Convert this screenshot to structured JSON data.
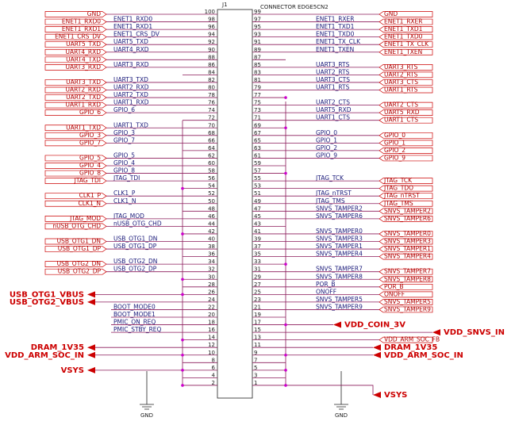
{
  "ref": "J1",
  "part": "CONNECTOR EDGE5CN2",
  "ground_labels": [
    "GND",
    "GND"
  ],
  "left_pins": [
    {
      "pin": "100",
      "port": "GND"
    },
    {
      "pin": "98",
      "net": "ENET1_RXD0",
      "port": "ENET1_RXD0"
    },
    {
      "pin": "96",
      "net": "ENET1_RXD1",
      "port": "ENET1_RXD1"
    },
    {
      "pin": "94",
      "net": "ENET1_CRS_DV",
      "port": "ENET1_CRS_DV"
    },
    {
      "pin": "92",
      "net": "UART5_TXD",
      "port": "UART5_TXD"
    },
    {
      "pin": "90",
      "net": "UART4_RXD",
      "port": "UART4_RXD"
    },
    {
      "pin": "88",
      "port": "UART4_TXD"
    },
    {
      "pin": "86",
      "net": "UART3_RXD",
      "port": "UART3_RXD"
    },
    {
      "pin": "84"
    },
    {
      "pin": "82",
      "net": "UART3_TXD",
      "port": "UART3_TXD"
    },
    {
      "pin": "80",
      "net": "UART2_RXD",
      "port": "UART2_RXD"
    },
    {
      "pin": "78",
      "net": "UART2_TXD",
      "port": "UART2_TXD"
    },
    {
      "pin": "76",
      "net": "UART1_RXD",
      "port": "UART1_RXD"
    },
    {
      "pin": "74",
      "net": "GPIO_6",
      "port": "GPIO_6"
    },
    {
      "pin": "72"
    },
    {
      "pin": "70",
      "net": "UART1_TXD",
      "port": "UART1_TXD"
    },
    {
      "pin": "68",
      "net": "GPIO_3",
      "port": "GPIO_3"
    },
    {
      "pin": "66",
      "net": "GPIO_7",
      "port": "GPIO_7"
    },
    {
      "pin": "64"
    },
    {
      "pin": "62",
      "net": "GPIO_5",
      "port": "GPIO_5"
    },
    {
      "pin": "60",
      "net": "GPIO_4",
      "port": "GPIO_4"
    },
    {
      "pin": "58",
      "net": "GPIO_8",
      "port": "GPIO_8"
    },
    {
      "pin": "56",
      "net": "JTAG_TDI",
      "port": "JTAG_TDI"
    },
    {
      "pin": "54"
    },
    {
      "pin": "52",
      "net": "CLK1_P",
      "port": "CLK1_P"
    },
    {
      "pin": "50",
      "net": "CLK1_N",
      "port": "CLK1_N"
    },
    {
      "pin": "48"
    },
    {
      "pin": "46",
      "net": "JTAG_MOD",
      "port": "JTAG_MOD"
    },
    {
      "pin": "44",
      "net": "nUSB_OTG_CHD",
      "port": "nUSB_OTG_CHD"
    },
    {
      "pin": "42"
    },
    {
      "pin": "40",
      "net": "USB_OTG1_DN",
      "port": "USB_OTG1_DN"
    },
    {
      "pin": "38",
      "net": "USB_OTG1_DP",
      "port": "USB_OTG1_DP"
    },
    {
      "pin": "36"
    },
    {
      "pin": "34",
      "net": "USB_OTG2_DN",
      "port": "USB_OTG2_DN"
    },
    {
      "pin": "32",
      "net": "USB_OTG2_DP",
      "port": "USB_OTG2_DP"
    },
    {
      "pin": "30"
    },
    {
      "pin": "28"
    },
    {
      "pin": "26",
      "power": "USB_OTG1_VBUS"
    },
    {
      "pin": "24",
      "power": "USB_OTG2_VBUS"
    },
    {
      "pin": "22",
      "net": "BOOT_MODE0"
    },
    {
      "pin": "20",
      "net": "BOOT_MODE1"
    },
    {
      "pin": "18",
      "net": "PMIC_ON_REQ"
    },
    {
      "pin": "16",
      "net": "PMIC_STBY_REQ"
    },
    {
      "pin": "14"
    },
    {
      "pin": "12",
      "power": "DRAM_1V35"
    },
    {
      "pin": "10",
      "power": "VDD_ARM_SOC_IN"
    },
    {
      "pin": "8"
    },
    {
      "pin": "6",
      "power": "VSYS"
    },
    {
      "pin": "4"
    },
    {
      "pin": "2"
    }
  ],
  "right_pins": [
    {
      "pin": "99",
      "port": "GND"
    },
    {
      "pin": "97",
      "net": "ENET1_RXER",
      "port": "ENET1_RXER"
    },
    {
      "pin": "95",
      "net": "ENET1_TXD1",
      "port": "ENET1_TXD1"
    },
    {
      "pin": "93",
      "net": "ENET1_TXD0",
      "port": "ENET1_TXD0"
    },
    {
      "pin": "91",
      "net": "ENET1_TX_CLK",
      "port": "ENET1_TX_CLK"
    },
    {
      "pin": "89",
      "net": "ENET1_TXEN",
      "port": "ENET1_TXEN"
    },
    {
      "pin": "87"
    },
    {
      "pin": "85",
      "net": "UART3_RTS",
      "port": "UART3_RTS"
    },
    {
      "pin": "83",
      "net": "UART2_RTS",
      "port": "UART2_RTS"
    },
    {
      "pin": "81",
      "net": "UART3_CTS",
      "port": "UART3_CTS"
    },
    {
      "pin": "79",
      "net": "UART1_RTS",
      "port": "UART1_RTS"
    },
    {
      "pin": "77"
    },
    {
      "pin": "75",
      "net": "UART2_CTS",
      "port": "UART2_CTS"
    },
    {
      "pin": "73",
      "net": "UART5_RXD",
      "port": "UART5_RXD"
    },
    {
      "pin": "71",
      "net": "UART1_CTS",
      "port": "UART1_CTS"
    },
    {
      "pin": "69"
    },
    {
      "pin": "67",
      "net": "GPIO_0",
      "port": "GPIO_0"
    },
    {
      "pin": "65",
      "net": "GPIO_1",
      "port": "GPIO_1"
    },
    {
      "pin": "63",
      "net": "GPIO_2",
      "port": "GPIO_2"
    },
    {
      "pin": "61",
      "net": "GPIO_9",
      "port": "GPIO_9"
    },
    {
      "pin": "59"
    },
    {
      "pin": "57"
    },
    {
      "pin": "55",
      "net": "JTAG_TCK",
      "port": "JTAG_TCK"
    },
    {
      "pin": "53",
      "port": "JTAG_TDO"
    },
    {
      "pin": "51",
      "net": "JTAG_nTRST",
      "port": "JTAG_nTRST"
    },
    {
      "pin": "49",
      "net": "JTAG_TMS",
      "port": "JTAG_TMS"
    },
    {
      "pin": "47",
      "net": "SNVS_TAMPER2",
      "port": "SNVS_TAMPER2"
    },
    {
      "pin": "45",
      "net": "SNVS_TAMPER6",
      "port": "SNVS_TAMPER6"
    },
    {
      "pin": "43"
    },
    {
      "pin": "41",
      "net": "SNVS_TAMPER0",
      "port": "SNVS_TAMPER0"
    },
    {
      "pin": "39",
      "net": "SNVS_TAMPER3",
      "port": "SNVS_TAMPER3"
    },
    {
      "pin": "37",
      "net": "SNVS_TAMPER1",
      "port": "SNVS_TAMPER1"
    },
    {
      "pin": "35",
      "net": "SNVS_TAMPER4",
      "port": "SNVS_TAMPER4"
    },
    {
      "pin": "33"
    },
    {
      "pin": "31",
      "net": "SNVS_TAMPER7",
      "port": "SNVS_TAMPER7"
    },
    {
      "pin": "29",
      "net": "SNVS_TAMPER8",
      "port": "SNVS_TAMPER8"
    },
    {
      "pin": "27",
      "net": "POR_B",
      "port": "POR_B"
    },
    {
      "pin": "25",
      "net": "ONOFF",
      "port": "ONOFF"
    },
    {
      "pin": "23",
      "net": "SNVS_TAMPER5",
      "port": "SNVS_TAMPER5"
    },
    {
      "pin": "21",
      "net": "SNVS_TAMPER9",
      "port": "SNVS_TAMPER9"
    },
    {
      "pin": "19"
    },
    {
      "pin": "17",
      "power": "VDD_COIN_3V"
    },
    {
      "pin": "15",
      "power": "VDD_SNVS_IN"
    },
    {
      "pin": "13",
      "port": "VDD_ARM_SOC_FB"
    },
    {
      "pin": "11",
      "power": "DRAM_1V35"
    },
    {
      "pin": "9",
      "power": "VDD_ARM_SOC_IN"
    },
    {
      "pin": "7"
    },
    {
      "pin": "5"
    },
    {
      "pin": "3"
    },
    {
      "pin": "1",
      "power": "VSYS"
    }
  ]
}
